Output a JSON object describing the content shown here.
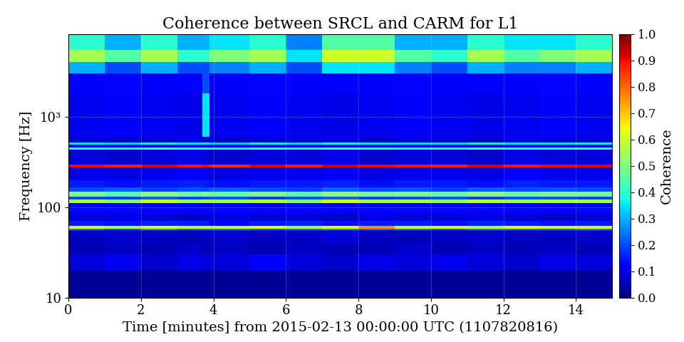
{
  "chart_data": {
    "type": "heatmap",
    "title": "Coherence between SRCL and CARM for L1",
    "x_label": "Time [minutes] from 2015-02-13 00:00:00 UTC (1107820816)",
    "y_label": "Frequency [Hz]",
    "log": "y",
    "grid": true,
    "xlim": [
      0,
      15
    ],
    "xticks": [
      0,
      2,
      4,
      6,
      8,
      10,
      12,
      14
    ],
    "ylim": [
      10,
      8192
    ],
    "yticks": [
      10,
      100,
      {
        "value": 1000,
        "label": "10³"
      }
    ],
    "x_edges": [
      0,
      1,
      2,
      3,
      3.7,
      3.9,
      5,
      6,
      7,
      8,
      9,
      10,
      11,
      12,
      13,
      14,
      15
    ],
    "y_edges": [
      10,
      20,
      30,
      40,
      56,
      58,
      62,
      70,
      85,
      110,
      122,
      130,
      148,
      165,
      200,
      275,
      298,
      430,
      460,
      490,
      520,
      600,
      1800,
      3000,
      4000,
      5500,
      8192
    ],
    "cells": [
      [
        0.02,
        0.02,
        0.02,
        0.02,
        0.02,
        0.02,
        0.02,
        0.02,
        0.02,
        0.02,
        0.02,
        0.02,
        0.02,
        0.02,
        0.02,
        0.02
      ],
      [
        0.08,
        0.1,
        0.07,
        0.09,
        0.08,
        0.08,
        0.12,
        0.08,
        0.07,
        0.09,
        0.08,
        0.1,
        0.08,
        0.07,
        0.09,
        0.08
      ],
      [
        0.05,
        0.06,
        0.05,
        0.07,
        0.05,
        0.06,
        0.05,
        0.06,
        0.05,
        0.05,
        0.07,
        0.05,
        0.06,
        0.05,
        0.06,
        0.05
      ],
      [
        0.06,
        0.07,
        0.06,
        0.05,
        0.06,
        0.07,
        0.06,
        0.06,
        0.08,
        0.06,
        0.05,
        0.06,
        0.07,
        0.06,
        0.06,
        0.07
      ],
      [
        0.25,
        0.22,
        0.28,
        0.24,
        0.25,
        0.26,
        0.23,
        0.25,
        0.27,
        0.24,
        0.25,
        0.22,
        0.26,
        0.25,
        0.24,
        0.26
      ],
      [
        0.6,
        0.55,
        0.62,
        0.58,
        0.6,
        0.57,
        0.61,
        0.55,
        0.63,
        0.75,
        0.58,
        0.6,
        0.56,
        0.62,
        0.59,
        0.6
      ],
      [
        0.15,
        0.14,
        0.16,
        0.15,
        0.15,
        0.13,
        0.15,
        0.16,
        0.14,
        0.15,
        0.15,
        0.14,
        0.16,
        0.15,
        0.14,
        0.15
      ],
      [
        0.08,
        0.09,
        0.08,
        0.07,
        0.08,
        0.09,
        0.08,
        0.08,
        0.07,
        0.09,
        0.08,
        0.08,
        0.09,
        0.08,
        0.07,
        0.08
      ],
      [
        0.12,
        0.11,
        0.13,
        0.12,
        0.12,
        0.11,
        0.12,
        0.13,
        0.12,
        0.11,
        0.12,
        0.12,
        0.13,
        0.12,
        0.11,
        0.12
      ],
      [
        0.55,
        0.5,
        0.58,
        0.52,
        0.55,
        0.53,
        0.56,
        0.5,
        0.6,
        0.54,
        0.55,
        0.52,
        0.57,
        0.53,
        0.55,
        0.54
      ],
      [
        0.2,
        0.18,
        0.22,
        0.19,
        0.2,
        0.21,
        0.19,
        0.2,
        0.22,
        0.18,
        0.2,
        0.21,
        0.19,
        0.2,
        0.21,
        0.19
      ],
      [
        0.5,
        0.45,
        0.52,
        0.48,
        0.5,
        0.47,
        0.51,
        0.46,
        0.53,
        0.49,
        0.5,
        0.47,
        0.52,
        0.48,
        0.5,
        0.49
      ],
      [
        0.2,
        0.22,
        0.19,
        0.21,
        0.2,
        0.22,
        0.2,
        0.19,
        0.23,
        0.2,
        0.21,
        0.19,
        0.22,
        0.2,
        0.21,
        0.2
      ],
      [
        0.15,
        0.14,
        0.15,
        0.16,
        0.15,
        0.14,
        0.15,
        0.15,
        0.16,
        0.14,
        0.15,
        0.15,
        0.14,
        0.16,
        0.15,
        0.15
      ],
      [
        0.1,
        0.09,
        0.1,
        0.11,
        0.1,
        0.09,
        0.1,
        0.1,
        0.11,
        0.09,
        0.1,
        0.1,
        0.09,
        0.11,
        0.1,
        0.1
      ],
      [
        0.9,
        0.88,
        0.92,
        0.89,
        0.9,
        0.87,
        0.91,
        0.88,
        0.93,
        0.9,
        0.89,
        0.88,
        0.92,
        0.89,
        0.9,
        0.91
      ],
      [
        0.08,
        0.07,
        0.08,
        0.09,
        0.08,
        0.07,
        0.08,
        0.08,
        0.09,
        0.07,
        0.08,
        0.08,
        0.07,
        0.09,
        0.08,
        0.08
      ],
      [
        0.4,
        0.38,
        0.42,
        0.39,
        0.4,
        0.37,
        0.41,
        0.38,
        0.43,
        0.4,
        0.39,
        0.38,
        0.42,
        0.39,
        0.4,
        0.41
      ],
      [
        0.1,
        0.09,
        0.1,
        0.11,
        0.1,
        0.09,
        0.1,
        0.1,
        0.11,
        0.09,
        0.1,
        0.1,
        0.09,
        0.11,
        0.1,
        0.1
      ],
      [
        0.35,
        0.33,
        0.36,
        0.34,
        0.35,
        0.32,
        0.36,
        0.33,
        0.37,
        0.35,
        0.34,
        0.33,
        0.36,
        0.34,
        0.35,
        0.36
      ],
      [
        0.08,
        0.07,
        0.08,
        0.09,
        0.08,
        0.07,
        0.08,
        0.08,
        0.09,
        0.07,
        0.08,
        0.08,
        0.07,
        0.09,
        0.08,
        0.08
      ],
      [
        0.1,
        0.11,
        0.1,
        0.09,
        0.35,
        0.1,
        0.11,
        0.1,
        0.09,
        0.1,
        0.11,
        0.1,
        0.09,
        0.1,
        0.11,
        0.1
      ],
      [
        0.12,
        0.13,
        0.12,
        0.11,
        0.2,
        0.12,
        0.13,
        0.12,
        0.11,
        0.12,
        0.13,
        0.12,
        0.11,
        0.12,
        0.13,
        0.12
      ],
      [
        0.3,
        0.2,
        0.3,
        0.2,
        0.2,
        0.25,
        0.3,
        0.2,
        0.35,
        0.35,
        0.25,
        0.2,
        0.3,
        0.25,
        0.25,
        0.3
      ],
      [
        0.55,
        0.45,
        0.55,
        0.4,
        0.4,
        0.5,
        0.55,
        0.35,
        0.6,
        0.6,
        0.45,
        0.4,
        0.55,
        0.45,
        0.5,
        0.55
      ],
      [
        0.4,
        0.3,
        0.4,
        0.3,
        0.3,
        0.35,
        0.4,
        0.25,
        0.45,
        0.45,
        0.3,
        0.3,
        0.4,
        0.35,
        0.35,
        0.4
      ]
    ],
    "colorbar": {
      "label": "Coherence",
      "range": [
        0,
        1
      ],
      "ticks": [
        {
          "value": 0,
          "label": "0.0"
        },
        0.1,
        0.2,
        0.3,
        0.4,
        0.5,
        0.6,
        0.7,
        0.8,
        0.9,
        {
          "value": 1,
          "label": "1.0"
        }
      ]
    }
  }
}
